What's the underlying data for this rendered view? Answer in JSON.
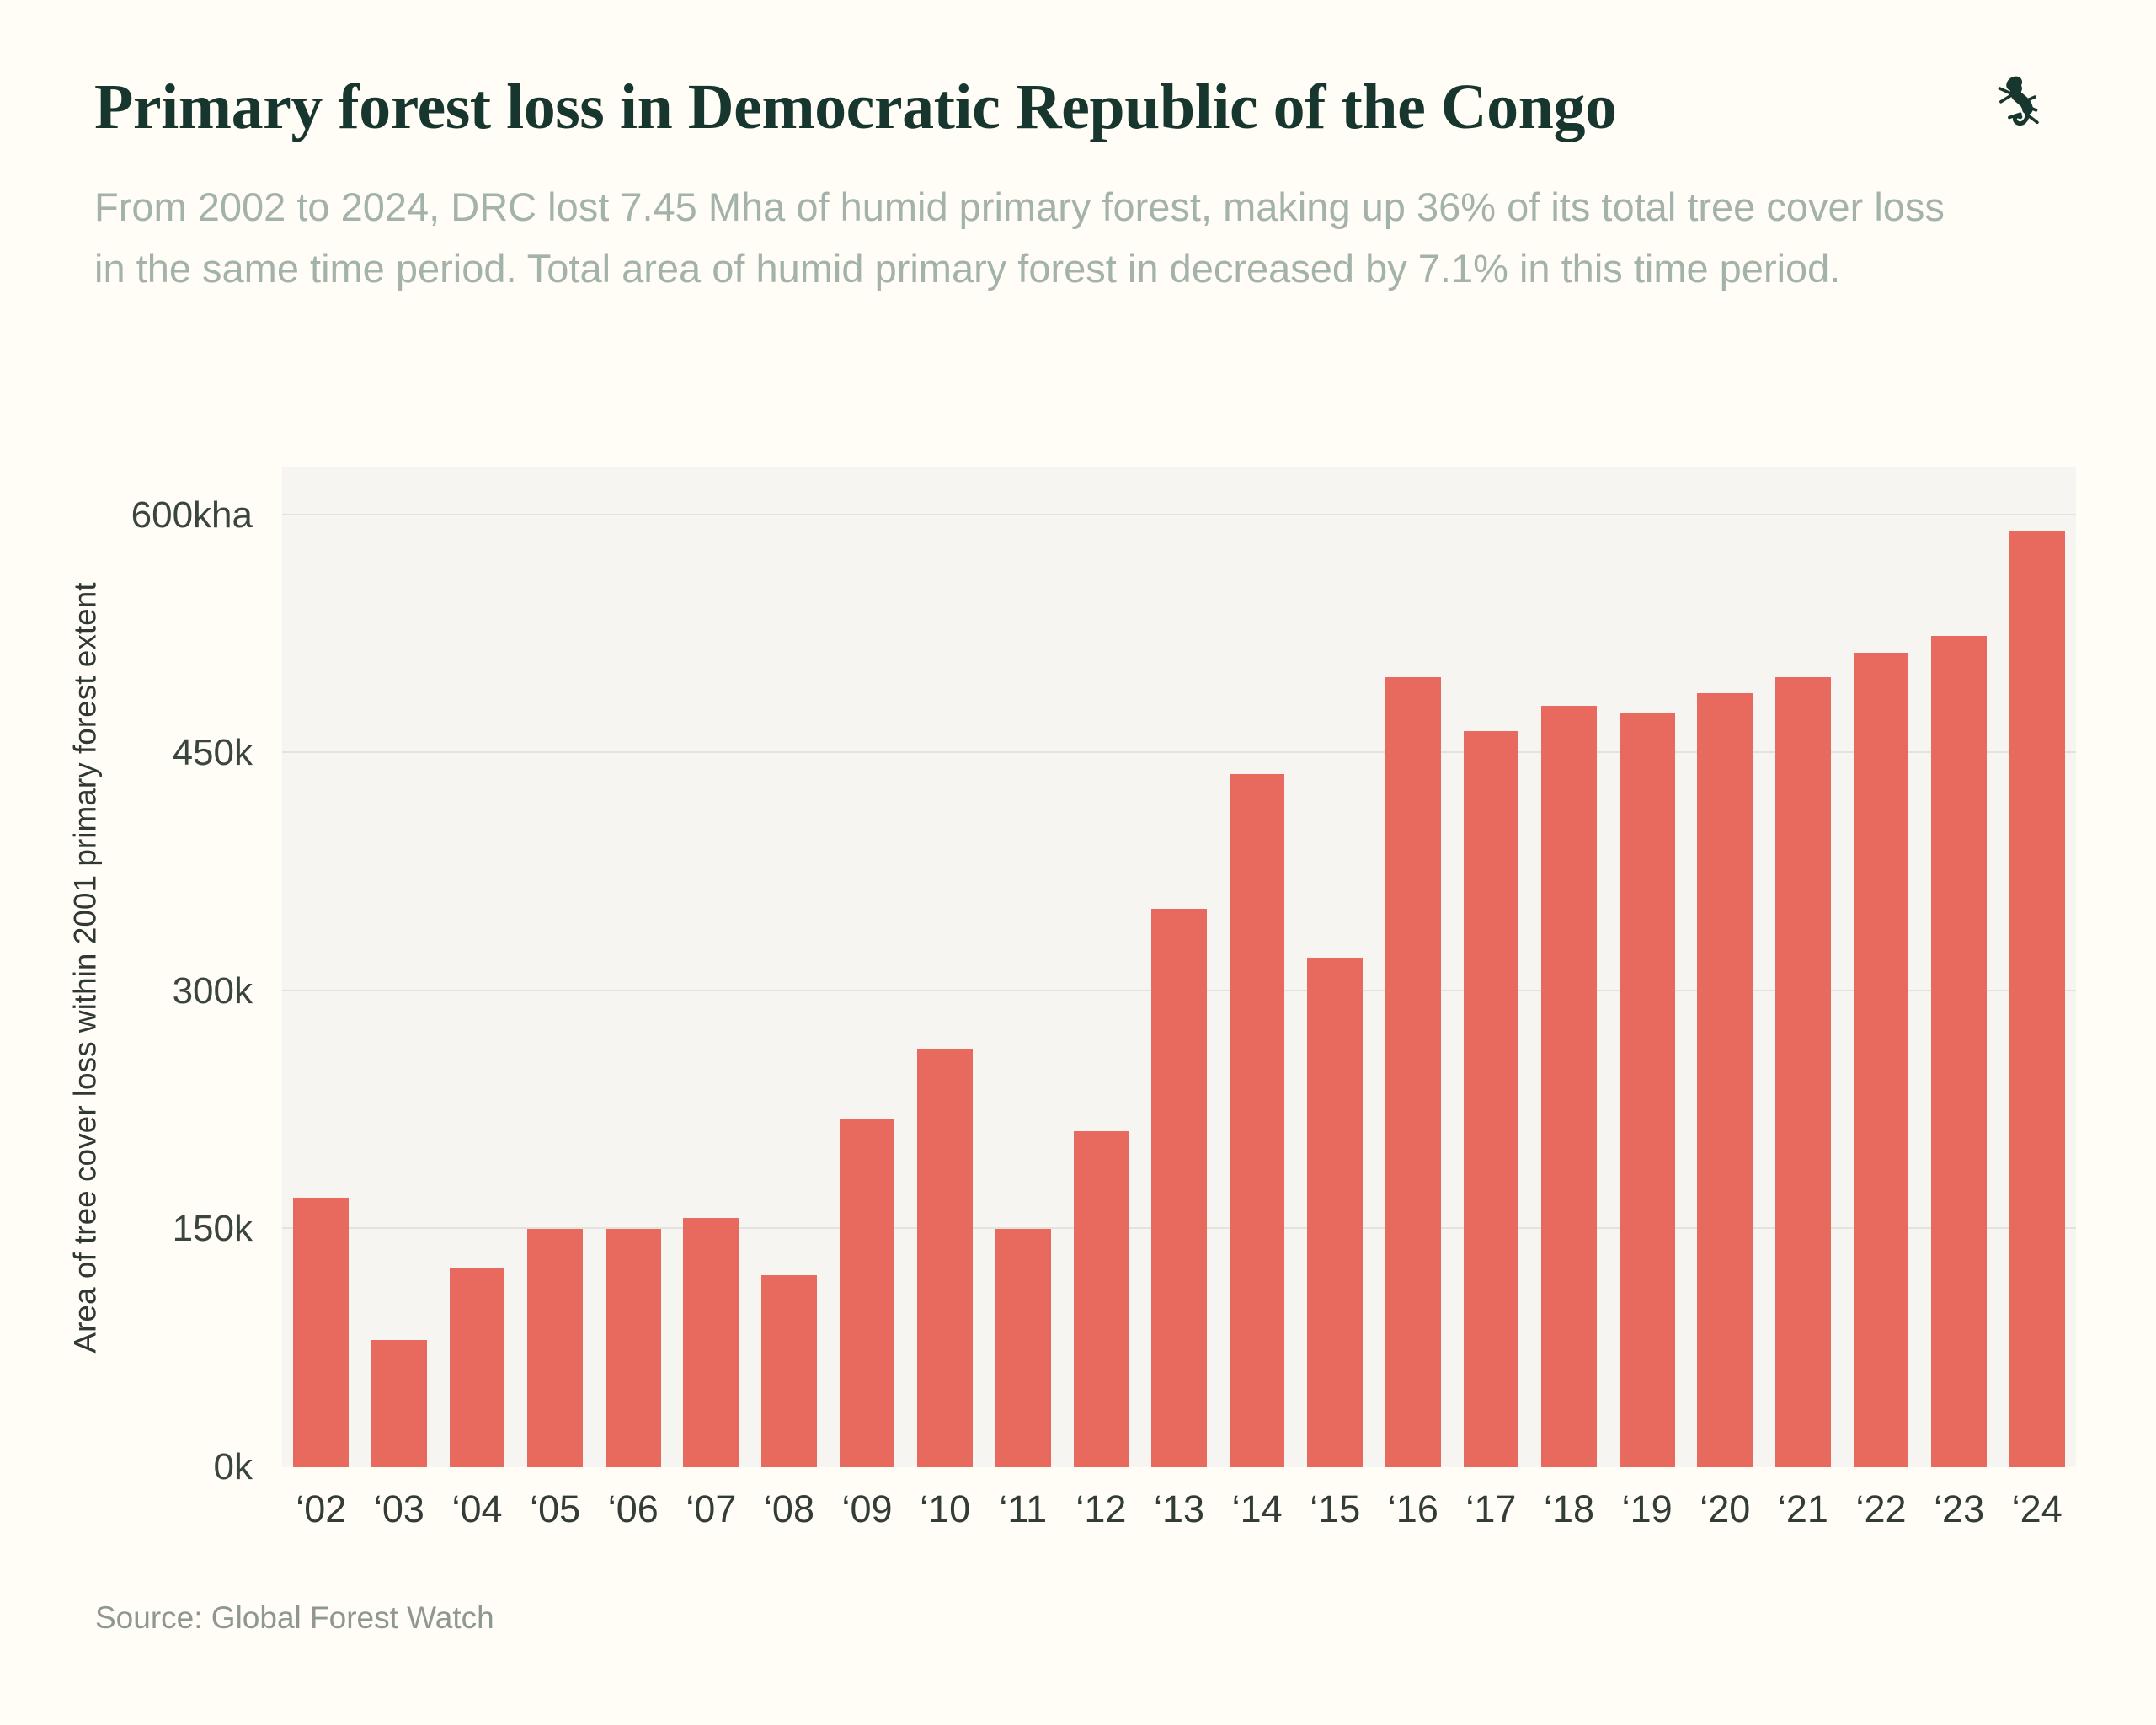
{
  "header": {
    "title": "Primary forest loss in Democratic Republic of the Congo",
    "subtitle": "From 2002 to 2024, DRC lost 7.45 Mha of humid primary forest, making up 36% of its total tree cover loss in the same time period. Total area of humid primary forest in decreased by 7.1% in this time period."
  },
  "source": "Source: Global Forest Watch",
  "colors": {
    "bar": "#E8695E",
    "title": "#17372E",
    "subtitle": "#A3B2AA",
    "page_background": "#FFFDF6",
    "plot_background": "#F6F5F1",
    "gridline": "#E3E2DD",
    "axis_text": "#3A453F",
    "source_text": "#8E988F"
  },
  "chart_data": {
    "type": "bar",
    "title": "Primary forest loss in Democratic Republic of the Congo",
    "xlabel": "",
    "ylabel": "Area of tree cover loss within 2001 primary forest extent",
    "units": "kha",
    "categories": [
      "‘02",
      "‘03",
      "‘04",
      "‘05",
      "‘06",
      "‘07",
      "‘08",
      "‘09",
      "‘10",
      "‘11",
      "‘12",
      "‘13",
      "‘14",
      "‘15",
      "‘16",
      "‘17",
      "‘18",
      "‘19",
      "‘20",
      "‘21",
      "‘22",
      "‘23",
      "‘24"
    ],
    "values": [
      170,
      80,
      126,
      150,
      150,
      157,
      121,
      220,
      263,
      150,
      212,
      352,
      437,
      321,
      498,
      464,
      480,
      475,
      488,
      498,
      513,
      524,
      590
    ],
    "ylim": [
      0,
      630
    ],
    "yticks": [
      {
        "value": 0,
        "label": "0k"
      },
      {
        "value": 150,
        "label": "150k"
      },
      {
        "value": 300,
        "label": "300k"
      },
      {
        "value": 450,
        "label": "450k"
      },
      {
        "value": 600,
        "label": "600kha"
      }
    ],
    "grid": true,
    "legend": false
  }
}
